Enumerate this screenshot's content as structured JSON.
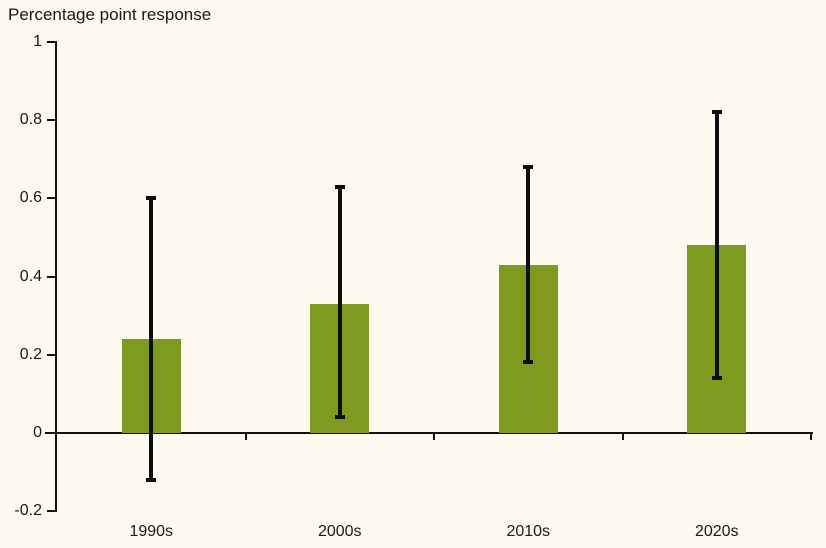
{
  "title": "Percentage point response",
  "chart_data": {
    "type": "bar",
    "title": "Percentage point response",
    "categories": [
      "1990s",
      "2000s",
      "2010s",
      "2020s"
    ],
    "values": [
      0.24,
      0.33,
      0.43,
      0.48
    ],
    "error_low": [
      -0.12,
      0.04,
      0.18,
      0.14
    ],
    "error_high": [
      0.6,
      0.63,
      0.68,
      0.82
    ],
    "xlabel": "",
    "ylabel": "Percentage point response",
    "ylim": [
      -0.2,
      1
    ],
    "yticks": [
      1,
      0.8,
      0.6,
      0.4,
      0.2,
      0,
      -0.2
    ],
    "grid": false,
    "legend": "none",
    "error_bars": true,
    "colors": {
      "bar": "#7e9b20",
      "error_bar": "#0e0e0e",
      "axis": "#111111",
      "text": "#1a1a1a",
      "background": "#fdfaf2"
    }
  }
}
